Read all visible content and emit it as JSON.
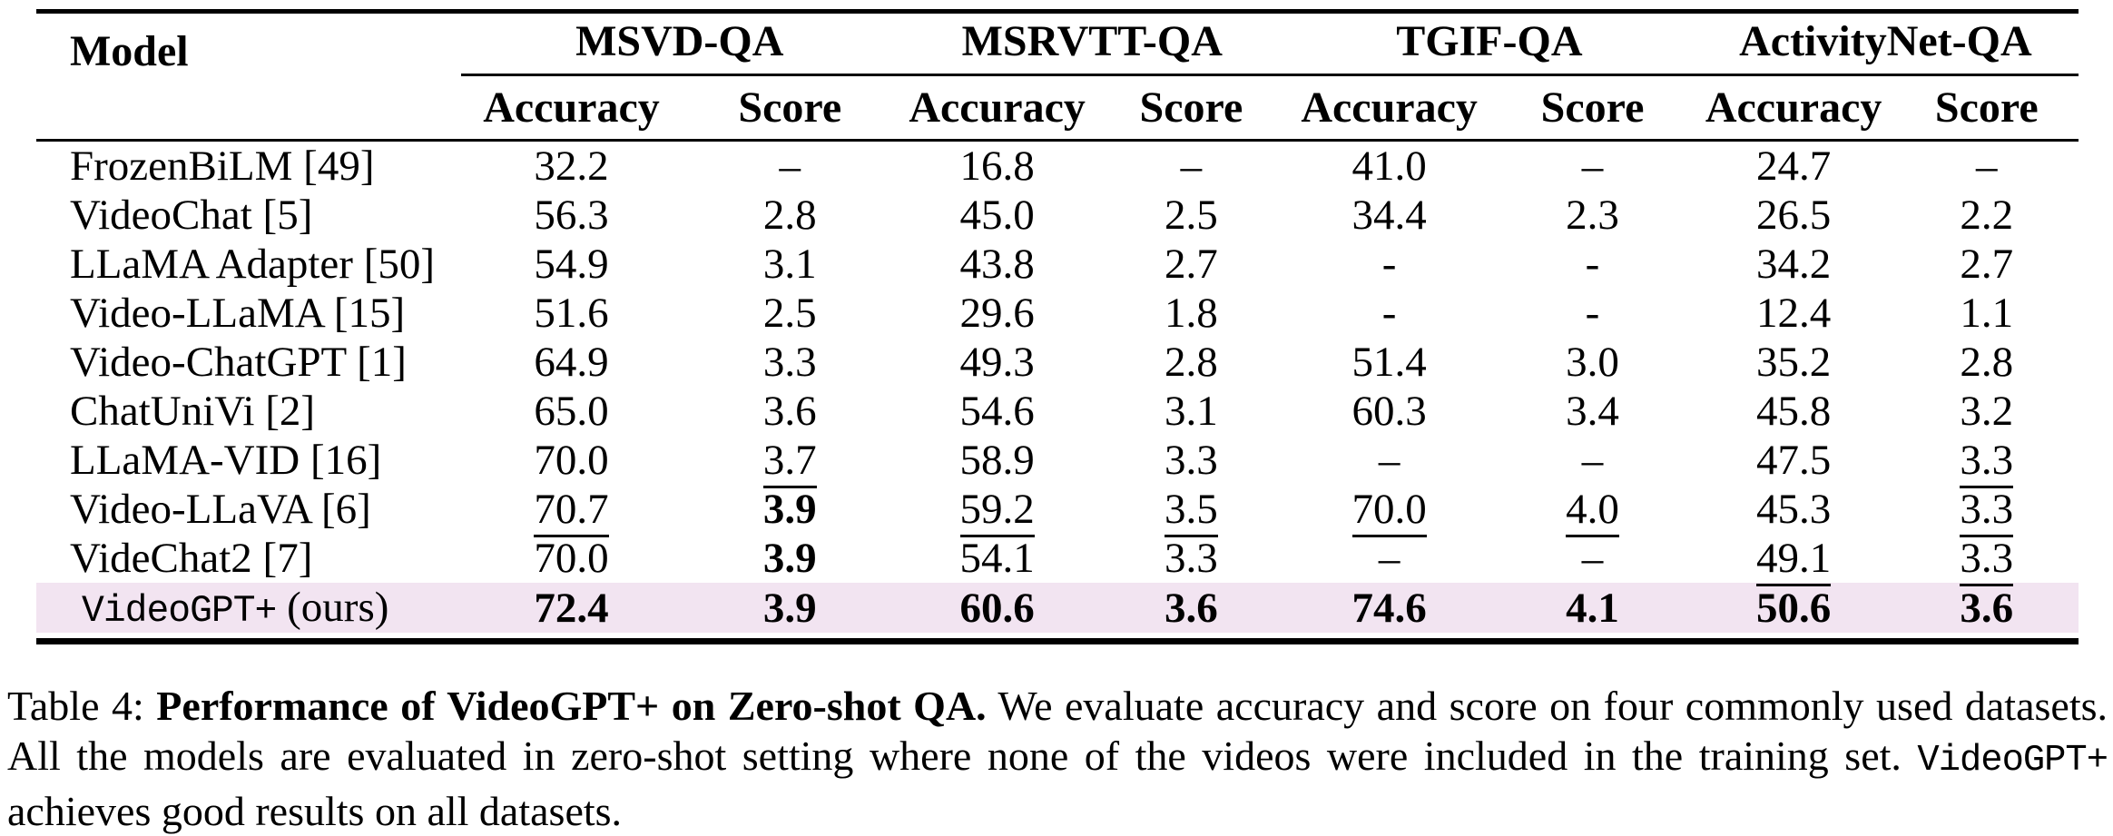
{
  "colors": {
    "highlight_row": "#f2e4f1",
    "text": "#000000",
    "background": "#ffffff"
  },
  "table": {
    "model_header": "Model",
    "groups": [
      {
        "label": "MSVD-QA"
      },
      {
        "label": "MSRVTT-QA"
      },
      {
        "label": "TGIF-QA"
      },
      {
        "label": "ActivityNet-QA"
      }
    ],
    "subheaders": [
      "Accuracy",
      "Score",
      "Accuracy",
      "Score",
      "Accuracy",
      "Score",
      "Accuracy",
      "Score"
    ],
    "rows": [
      {
        "model": "FrozenBiLM [49]",
        "highlight": false,
        "cells": [
          {
            "v": "32.2"
          },
          {
            "v": "–"
          },
          {
            "v": "16.8"
          },
          {
            "v": "–"
          },
          {
            "v": "41.0"
          },
          {
            "v": "–"
          },
          {
            "v": "24.7"
          },
          {
            "v": "–"
          }
        ]
      },
      {
        "model": "VideoChat [5]",
        "highlight": false,
        "cells": [
          {
            "v": "56.3"
          },
          {
            "v": "2.8"
          },
          {
            "v": "45.0"
          },
          {
            "v": "2.5"
          },
          {
            "v": "34.4"
          },
          {
            "v": "2.3"
          },
          {
            "v": "26.5"
          },
          {
            "v": "2.2"
          }
        ]
      },
      {
        "model": "LLaMA Adapter [50]",
        "highlight": false,
        "cells": [
          {
            "v": "54.9"
          },
          {
            "v": "3.1"
          },
          {
            "v": "43.8"
          },
          {
            "v": "2.7"
          },
          {
            "v": "-"
          },
          {
            "v": "-"
          },
          {
            "v": "34.2"
          },
          {
            "v": "2.7"
          }
        ]
      },
      {
        "model": "Video-LLaMA [15]",
        "highlight": false,
        "cells": [
          {
            "v": "51.6"
          },
          {
            "v": "2.5"
          },
          {
            "v": "29.6"
          },
          {
            "v": "1.8"
          },
          {
            "v": "-"
          },
          {
            "v": "-"
          },
          {
            "v": "12.4"
          },
          {
            "v": "1.1"
          }
        ]
      },
      {
        "model": "Video-ChatGPT [1]",
        "highlight": false,
        "cells": [
          {
            "v": "64.9"
          },
          {
            "v": "3.3"
          },
          {
            "v": "49.3"
          },
          {
            "v": "2.8"
          },
          {
            "v": "51.4"
          },
          {
            "v": "3.0"
          },
          {
            "v": "35.2"
          },
          {
            "v": "2.8"
          }
        ]
      },
      {
        "model": "ChatUniVi [2]",
        "highlight": false,
        "cells": [
          {
            "v": "65.0"
          },
          {
            "v": "3.6"
          },
          {
            "v": "54.6"
          },
          {
            "v": "3.1"
          },
          {
            "v": "60.3"
          },
          {
            "v": "3.4"
          },
          {
            "v": "45.8"
          },
          {
            "v": "3.2"
          }
        ]
      },
      {
        "model": "LLaMA-VID [16]",
        "highlight": false,
        "cells": [
          {
            "v": "70.0"
          },
          {
            "v": "3.7",
            "u": true
          },
          {
            "v": "58.9"
          },
          {
            "v": "3.3"
          },
          {
            "v": "–"
          },
          {
            "v": "–"
          },
          {
            "v": "47.5"
          },
          {
            "v": "3.3",
            "u": true
          }
        ]
      },
      {
        "model": "Video-LLaVA [6]",
        "highlight": false,
        "cells": [
          {
            "v": "70.7",
            "u": true
          },
          {
            "v": "3.9",
            "b": true
          },
          {
            "v": "59.2",
            "u": true
          },
          {
            "v": "3.5",
            "u": true
          },
          {
            "v": "70.0",
            "u": true
          },
          {
            "v": "4.0",
            "u": true
          },
          {
            "v": "45.3"
          },
          {
            "v": "3.3",
            "u": true
          }
        ]
      },
      {
        "model": "VideChat2 [7]",
        "highlight": false,
        "cells": [
          {
            "v": "70.0"
          },
          {
            "v": "3.9",
            "b": true
          },
          {
            "v": "54.1"
          },
          {
            "v": "3.3"
          },
          {
            "v": "–"
          },
          {
            "v": "–"
          },
          {
            "v": "49.1",
            "u": true
          },
          {
            "v": "3.3",
            "u": true
          }
        ]
      },
      {
        "highlight": true,
        "parts": [
          {
            "t": "VideoGPT+",
            "mono": true
          },
          {
            "t": " (ours)",
            "mono": false
          }
        ],
        "cells": [
          {
            "v": "72.4",
            "b": true
          },
          {
            "v": "3.9",
            "b": true
          },
          {
            "v": "60.6",
            "b": true
          },
          {
            "v": "3.6",
            "b": true
          },
          {
            "v": "74.6",
            "b": true
          },
          {
            "v": "4.1",
            "b": true
          },
          {
            "v": "50.6",
            "b": true
          },
          {
            "v": "3.6",
            "b": true
          }
        ]
      }
    ]
  },
  "caption": {
    "prefix": "Table 4: ",
    "bold_title": "Performance of VideoGPT+ on Zero-shot QA.",
    "body_1": " We evaluate accuracy and score on four commonly used datasets. All the models are evaluated in zero-shot setting where none of the videos were included in the training set. ",
    "mono_name": "VideoGPT+",
    "body_2": " achieves good results on all datasets."
  }
}
